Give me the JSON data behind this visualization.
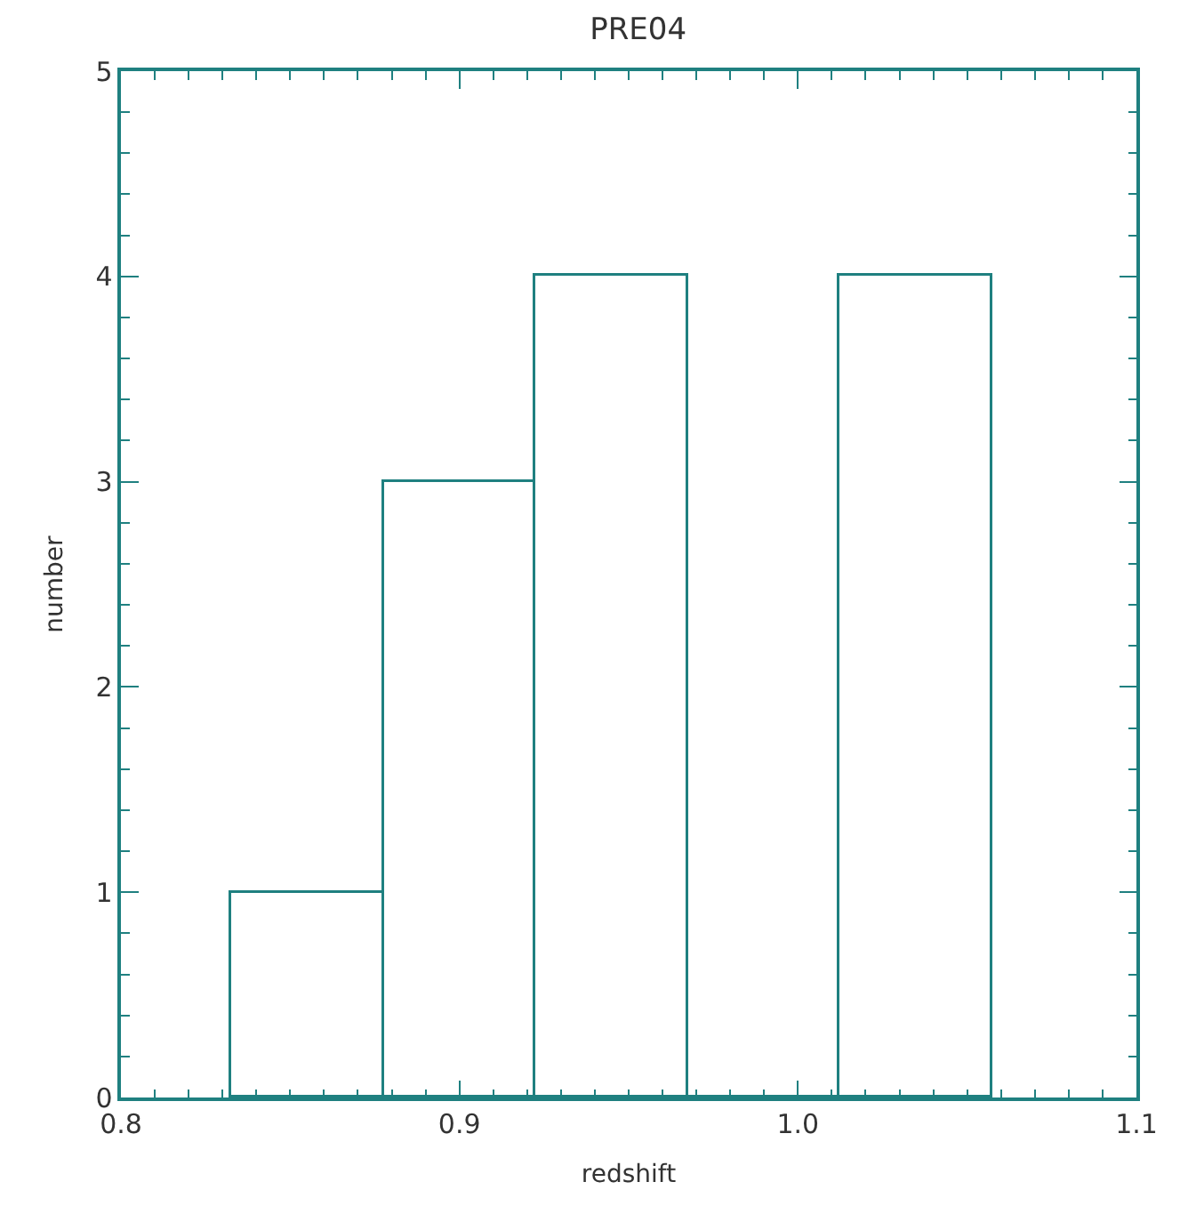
{
  "chart_data": {
    "type": "histogram",
    "title": "PRE04",
    "xlabel": "redshift",
    "ylabel": "number",
    "bins": [
      0.8325,
      0.8775,
      0.9225,
      0.9675,
      1.0125,
      1.0575
    ],
    "values": [
      1,
      3,
      4,
      0,
      4
    ],
    "color": "#1f8080",
    "xlim": [
      0.8,
      1.1
    ],
    "xticks": [
      {
        "value": 0.8,
        "label": "0.8"
      },
      {
        "value": 0.9,
        "label": "0.9"
      },
      {
        "value": 1.0,
        "label": "1.0"
      },
      {
        "value": 1.1,
        "label": "1.1"
      },
      {
        "value": 0.81,
        "label": null
      },
      {
        "value": 0.82,
        "label": null
      },
      {
        "value": 0.83,
        "label": null
      },
      {
        "value": 0.84,
        "label": null
      },
      {
        "value": 0.85,
        "label": null
      },
      {
        "value": 0.86,
        "label": null
      },
      {
        "value": 0.87,
        "label": null
      },
      {
        "value": 0.88,
        "label": null
      },
      {
        "value": 0.89,
        "label": null
      },
      {
        "value": 0.91,
        "label": null
      },
      {
        "value": 0.92,
        "label": null
      },
      {
        "value": 0.93,
        "label": null
      },
      {
        "value": 0.94,
        "label": null
      },
      {
        "value": 0.95,
        "label": null
      },
      {
        "value": 0.96,
        "label": null
      },
      {
        "value": 0.97,
        "label": null
      },
      {
        "value": 0.98,
        "label": null
      },
      {
        "value": 0.99,
        "label": null
      },
      {
        "value": 1.01,
        "label": null
      },
      {
        "value": 1.02,
        "label": null
      },
      {
        "value": 1.03,
        "label": null
      },
      {
        "value": 1.04,
        "label": null
      },
      {
        "value": 1.05,
        "label": null
      },
      {
        "value": 1.06,
        "label": null
      },
      {
        "value": 1.07,
        "label": null
      },
      {
        "value": 1.08,
        "label": null
      },
      {
        "value": 1.09,
        "label": null
      }
    ],
    "ylim": [
      0,
      5
    ],
    "yticks": [
      0,
      1,
      2,
      3,
      4,
      5,
      {
        "value": 0.2,
        "label": null
      },
      {
        "value": 0.4,
        "label": null
      },
      {
        "value": 0.6,
        "label": null
      },
      {
        "value": 0.8,
        "label": null
      },
      {
        "value": 1.2,
        "label": null
      },
      {
        "value": 1.4,
        "label": null
      },
      {
        "value": 1.6,
        "label": null
      },
      {
        "value": 1.8,
        "label": null
      },
      {
        "value": 2.2,
        "label": null
      },
      {
        "value": 2.4,
        "label": null
      },
      {
        "value": 2.6,
        "label": null
      },
      {
        "value": 2.8,
        "label": null
      },
      {
        "value": 3.2,
        "label": null
      },
      {
        "value": 3.4,
        "label": null
      },
      {
        "value": 3.6,
        "label": null
      },
      {
        "value": 3.8,
        "label": null
      },
      {
        "value": 4.2,
        "label": null
      },
      {
        "value": 4.4,
        "label": null
      },
      {
        "value": 4.6,
        "label": null
      },
      {
        "value": 4.8,
        "label": null
      }
    ]
  }
}
